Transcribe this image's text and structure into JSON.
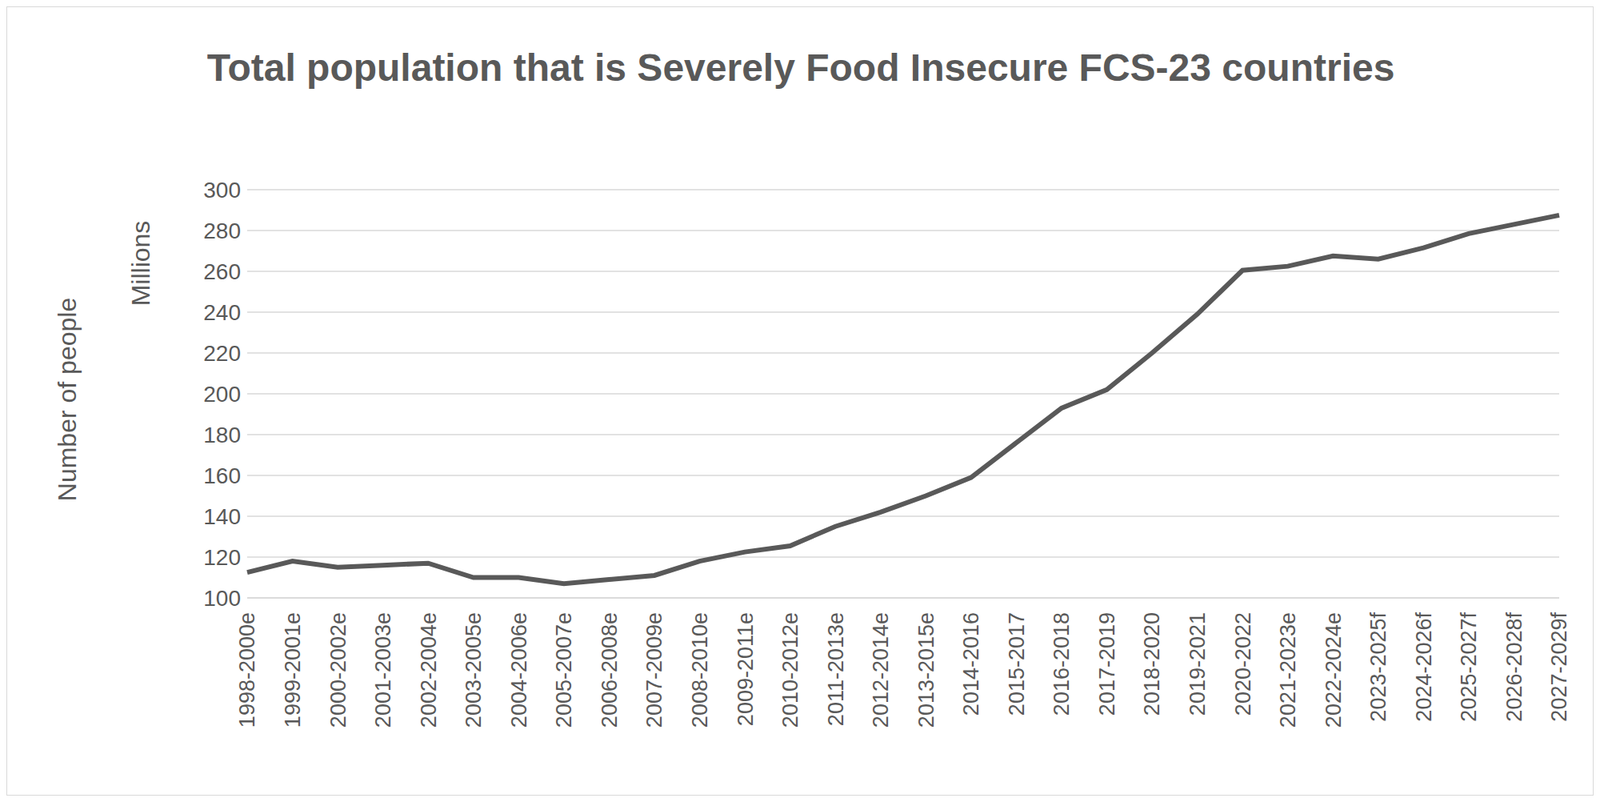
{
  "chart_data": {
    "type": "line",
    "title": "Total population that is Severely Food Insecure FCS-23 countries",
    "ylabel": "Number of people",
    "yunits": "Millions",
    "categories": [
      "1998-2000e",
      "1999-2001e",
      "2000-2002e",
      "2001-2003e",
      "2002-2004e",
      "2003-2005e",
      "2004-2006e",
      "2005-2007e",
      "2006-2008e",
      "2007-2009e",
      "2008-2010e",
      "2009-2011e",
      "2010-2012e",
      "2011-2013e",
      "2012-2014e",
      "2013-2015e",
      "2014-2016",
      "2015-2017",
      "2016-2018",
      "2017-2019",
      "2018-2020",
      "2019-2021",
      "2020-2022",
      "2021-2023e",
      "2022-2024e",
      "2023-2025f",
      "2024-2026f",
      "2025-2027f",
      "2026-2028f",
      "2027-2029f"
    ],
    "values": [
      112.5,
      118,
      115,
      116,
      117,
      110,
      110,
      107,
      109,
      111,
      118,
      122.5,
      125.5,
      135,
      142,
      150,
      159,
      176,
      193,
      202,
      220,
      239,
      260.5,
      262.5,
      267.5,
      266,
      271.5,
      278.5,
      283,
      287.5
    ],
    "color": "#595959",
    "ylim": [
      100,
      300
    ],
    "yticks": [
      100,
      120,
      140,
      160,
      180,
      200,
      220,
      240,
      260,
      280,
      300
    ],
    "grid": true
  }
}
